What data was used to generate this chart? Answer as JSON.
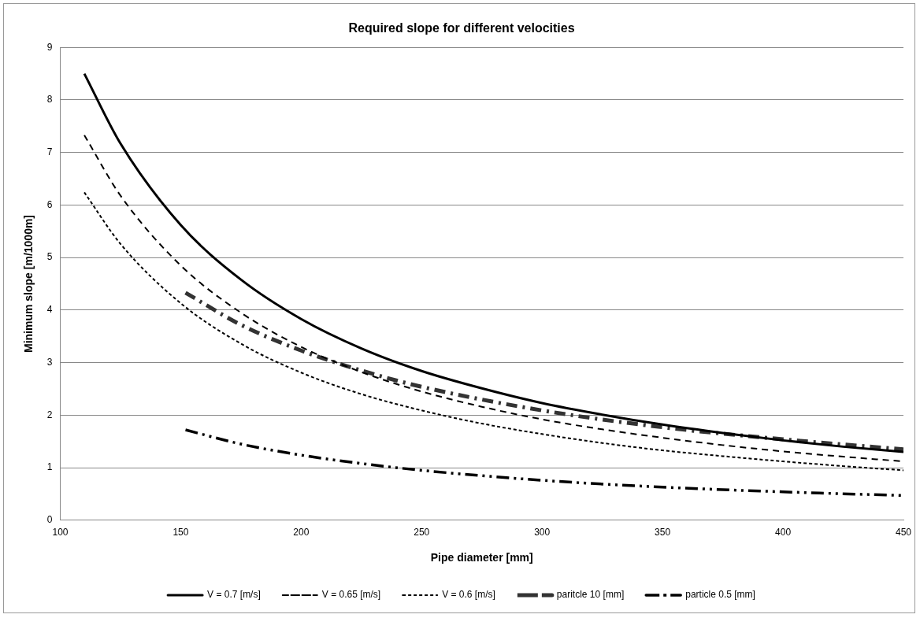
{
  "chart_data": {
    "type": "line",
    "title": "Required slope for different velocities",
    "xlabel": "Pipe diameter [mm]",
    "ylabel": "Minimum slope [m/1000m]",
    "xlim": [
      100,
      450
    ],
    "xticks": [
      100,
      150,
      200,
      250,
      300,
      350,
      400,
      450
    ],
    "ylim": [
      0,
      9
    ],
    "yticks": [
      0,
      1,
      2,
      3,
      4,
      5,
      6,
      7,
      8,
      9
    ],
    "grid": "y",
    "legend": "bottom",
    "marker": "none",
    "series": [
      {
        "name": "V = 0.7 [m/s]",
        "color": "#000000",
        "line_style": "solid",
        "x": [
          110,
          125,
          150,
          175,
          200,
          225,
          250,
          275,
          300,
          325,
          350,
          375,
          400,
          425,
          450
        ],
        "values": [
          8.5,
          7.17,
          5.62,
          4.58,
          3.83,
          3.27,
          2.84,
          2.51,
          2.23,
          2.01,
          1.82,
          1.66,
          1.52,
          1.4,
          1.3
        ]
      },
      {
        "name": "V = 0.65 [m/s]",
        "color": "#000000",
        "line_style": "dashed",
        "x": [
          110,
          125,
          150,
          175,
          200,
          225,
          250,
          275,
          300,
          325,
          350,
          375,
          400,
          425,
          450
        ],
        "values": [
          7.33,
          6.18,
          4.85,
          3.95,
          3.3,
          2.82,
          2.45,
          2.16,
          1.92,
          1.73,
          1.57,
          1.43,
          1.31,
          1.21,
          1.12
        ]
      },
      {
        "name": "V = 0.6 [m/s]",
        "color": "#000000",
        "line_style": "dotted",
        "x": [
          110,
          125,
          150,
          175,
          200,
          225,
          250,
          275,
          300,
          325,
          350,
          375,
          400,
          425,
          450
        ],
        "values": [
          6.24,
          5.26,
          4.13,
          3.36,
          2.81,
          2.4,
          2.09,
          1.84,
          1.64,
          1.47,
          1.33,
          1.22,
          1.12,
          1.03,
          0.95
        ]
      },
      {
        "name": "paritcle 10 [mm]",
        "color": "#333333",
        "line_style": "dashdot",
        "x": [
          152,
          175,
          200,
          225,
          250,
          300,
          350,
          400,
          450
        ],
        "values": [
          4.33,
          3.72,
          3.23,
          2.85,
          2.54,
          2.09,
          1.77,
          1.54,
          1.35
        ]
      },
      {
        "name": "particle 0.5 [mm]",
        "color": "#000000",
        "line_style": "dashdotdot",
        "x": [
          152,
          175,
          200,
          225,
          250,
          300,
          350,
          400,
          450
        ],
        "values": [
          1.72,
          1.45,
          1.24,
          1.08,
          0.95,
          0.76,
          0.63,
          0.54,
          0.47
        ]
      }
    ]
  }
}
